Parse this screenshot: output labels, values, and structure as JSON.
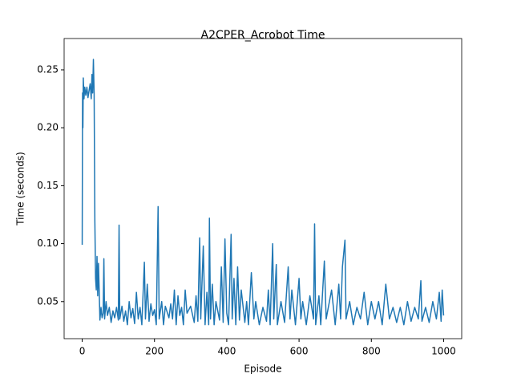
{
  "chart_data": {
    "type": "line",
    "title": "A2CPER_Acrobot Time",
    "x_label": "Episode",
    "y_label": "Time (seconds)",
    "x": [
      0,
      1,
      2,
      3,
      5,
      7,
      10,
      13,
      16,
      19,
      22,
      25,
      27,
      29,
      31,
      33,
      35,
      37,
      39,
      41,
      43,
      45,
      47,
      49,
      52,
      55,
      58,
      60,
      62,
      66,
      70,
      75,
      80,
      85,
      90,
      95,
      100,
      102,
      104,
      110,
      115,
      120,
      125,
      130,
      135,
      140,
      145,
      150,
      155,
      160,
      165,
      172,
      175,
      180,
      185,
      190,
      195,
      200,
      205,
      210,
      213,
      220,
      225,
      230,
      240,
      245,
      250,
      255,
      260,
      265,
      270,
      275,
      280,
      285,
      290,
      300,
      310,
      315,
      320,
      325,
      328,
      335,
      340,
      345,
      350,
      352,
      355,
      360,
      365,
      370,
      380,
      385,
      390,
      395,
      400,
      405,
      412,
      415,
      420,
      425,
      430,
      435,
      440,
      450,
      455,
      460,
      468,
      475,
      480,
      490,
      500,
      510,
      515,
      520,
      527,
      530,
      537,
      540,
      550,
      560,
      570,
      575,
      580,
      590,
      600,
      605,
      610,
      620,
      630,
      640,
      643,
      646,
      655,
      660,
      670,
      675,
      690,
      700,
      710,
      715,
      720,
      727,
      730,
      740,
      750,
      760,
      770,
      780,
      790,
      800,
      810,
      820,
      830,
      840,
      850,
      860,
      870,
      880,
      890,
      900,
      910,
      920,
      930,
      937,
      940,
      950,
      960,
      970,
      980,
      988,
      993,
      996,
      1000
    ],
    "series": [
      {
        "color": "#1f77b4",
        "values": [
          0.099,
          0.23,
          0.2,
          0.243,
          0.225,
          0.235,
          0.228,
          0.235,
          0.226,
          0.232,
          0.238,
          0.225,
          0.246,
          0.23,
          0.259,
          0.23,
          0.12,
          0.07,
          0.06,
          0.089,
          0.055,
          0.083,
          0.06,
          0.034,
          0.045,
          0.036,
          0.04,
          0.087,
          0.035,
          0.05,
          0.038,
          0.045,
          0.032,
          0.042,
          0.036,
          0.045,
          0.034,
          0.116,
          0.035,
          0.046,
          0.033,
          0.042,
          0.03,
          0.05,
          0.036,
          0.044,
          0.031,
          0.058,
          0.035,
          0.045,
          0.03,
          0.084,
          0.035,
          0.065,
          0.033,
          0.048,
          0.038,
          0.043,
          0.03,
          0.132,
          0.035,
          0.05,
          0.03,
          0.046,
          0.036,
          0.048,
          0.035,
          0.06,
          0.03,
          0.055,
          0.038,
          0.045,
          0.03,
          0.06,
          0.04,
          0.046,
          0.032,
          0.055,
          0.033,
          0.105,
          0.035,
          0.098,
          0.03,
          0.058,
          0.03,
          0.122,
          0.035,
          0.065,
          0.03,
          0.05,
          0.034,
          0.08,
          0.032,
          0.104,
          0.04,
          0.03,
          0.108,
          0.035,
          0.07,
          0.03,
          0.08,
          0.034,
          0.06,
          0.032,
          0.05,
          0.03,
          0.075,
          0.035,
          0.05,
          0.03,
          0.045,
          0.033,
          0.06,
          0.03,
          0.1,
          0.035,
          0.082,
          0.03,
          0.05,
          0.032,
          0.08,
          0.035,
          0.06,
          0.03,
          0.07,
          0.035,
          0.05,
          0.03,
          0.055,
          0.035,
          0.117,
          0.03,
          0.055,
          0.03,
          0.085,
          0.035,
          0.06,
          0.03,
          0.065,
          0.035,
          0.08,
          0.103,
          0.035,
          0.05,
          0.03,
          0.045,
          0.035,
          0.058,
          0.03,
          0.05,
          0.035,
          0.05,
          0.03,
          0.065,
          0.035,
          0.045,
          0.032,
          0.045,
          0.03,
          0.05,
          0.033,
          0.045,
          0.035,
          0.068,
          0.033,
          0.045,
          0.032,
          0.05,
          0.035,
          0.058,
          0.033,
          0.06,
          0.038
        ]
      }
    ],
    "xlim": [
      -50,
      1050
    ],
    "xticks": [
      0,
      200,
      400,
      600,
      800,
      1000
    ],
    "ylim": [
      0.018,
      0.277
    ],
    "yticks": [
      0.05,
      {
        "value": 0.1,
        "label": "0.10"
      },
      0.15,
      {
        "value": 0.2,
        "label": "0.20"
      },
      0.25
    ]
  }
}
